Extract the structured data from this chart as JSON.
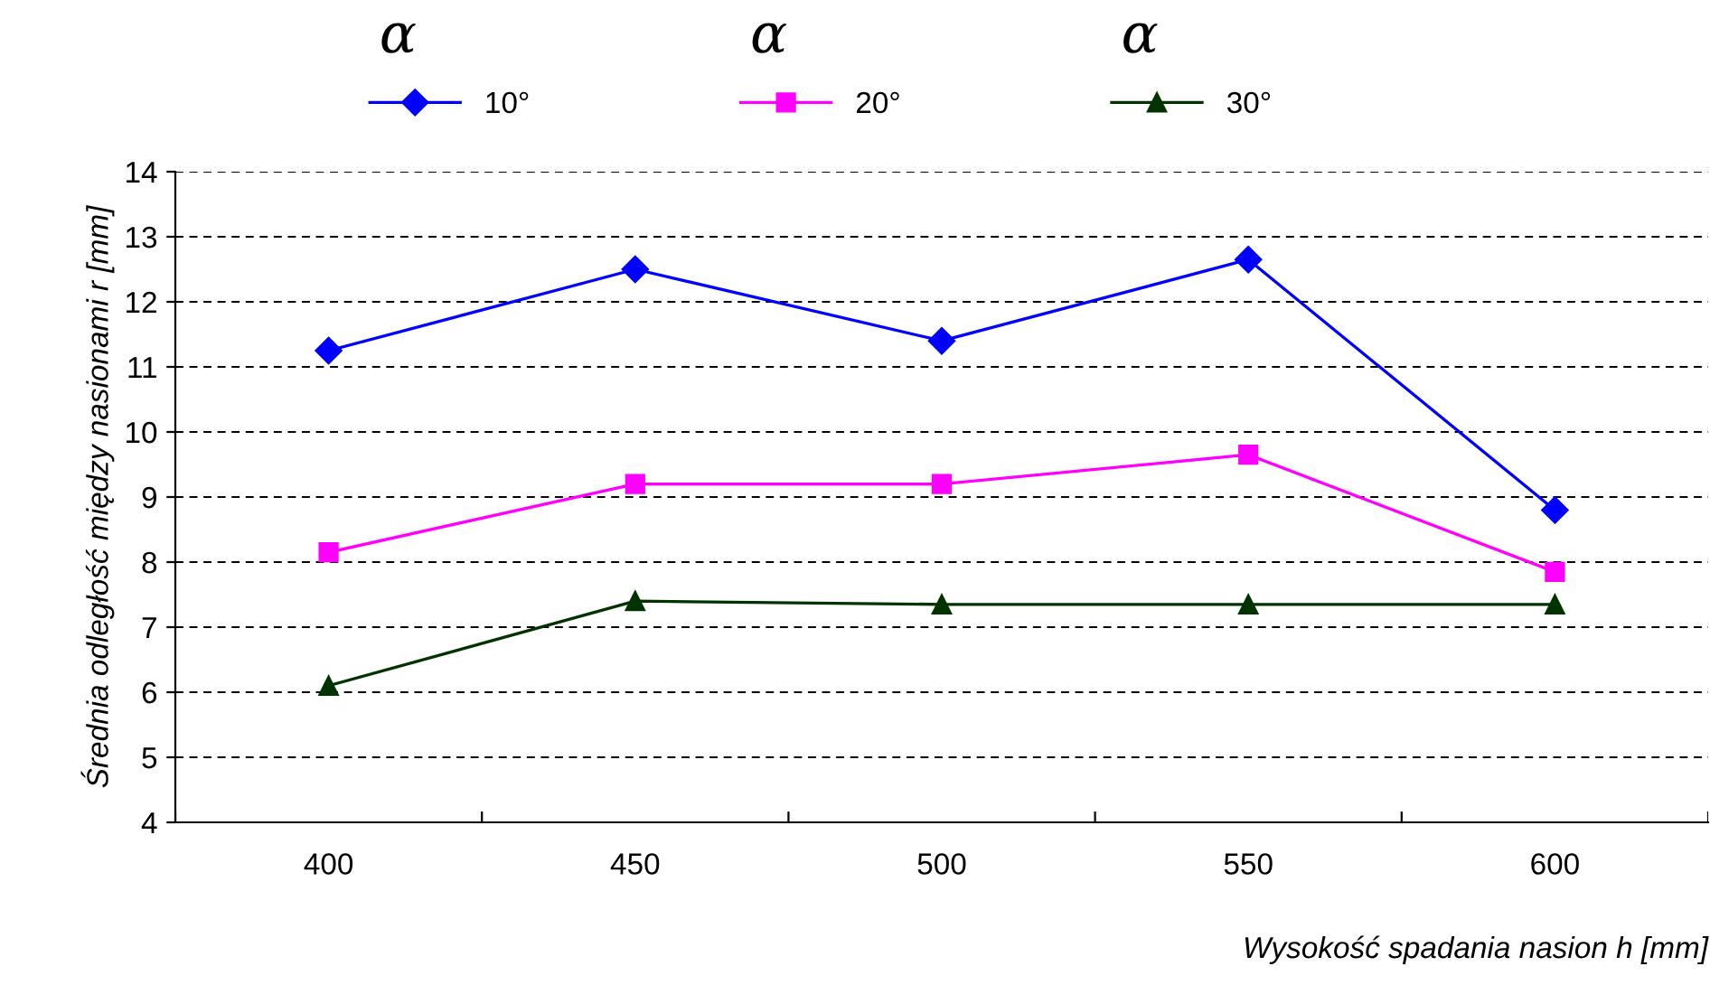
{
  "chart_data": {
    "type": "line",
    "xlabel": "Wysokość spadania nasion h [mm]",
    "ylabel": "Średnia odległość między nasionami r [mm]",
    "categories": [
      "400",
      "450",
      "500",
      "550",
      "600"
    ],
    "series": [
      {
        "name": "10°",
        "color": "#0000ff",
        "marker": "diamond",
        "values": [
          11.25,
          12.5,
          11.4,
          12.65,
          8.8
        ]
      },
      {
        "name": "20°",
        "color": "#ff00ff",
        "marker": "square",
        "values": [
          8.15,
          9.2,
          9.2,
          9.65,
          7.85
        ]
      },
      {
        "name": "30°",
        "color": "#003300",
        "marker": "triangle",
        "values": [
          6.1,
          7.4,
          7.35,
          7.35,
          7.35
        ]
      }
    ],
    "annotations": [
      "α",
      "α",
      "α"
    ],
    "ylim": [
      4,
      14
    ],
    "yticks": [
      4,
      5,
      6,
      7,
      8,
      9,
      10,
      11,
      12,
      13,
      14
    ],
    "grid": "y",
    "legend": "top",
    "line_style": "solid"
  }
}
